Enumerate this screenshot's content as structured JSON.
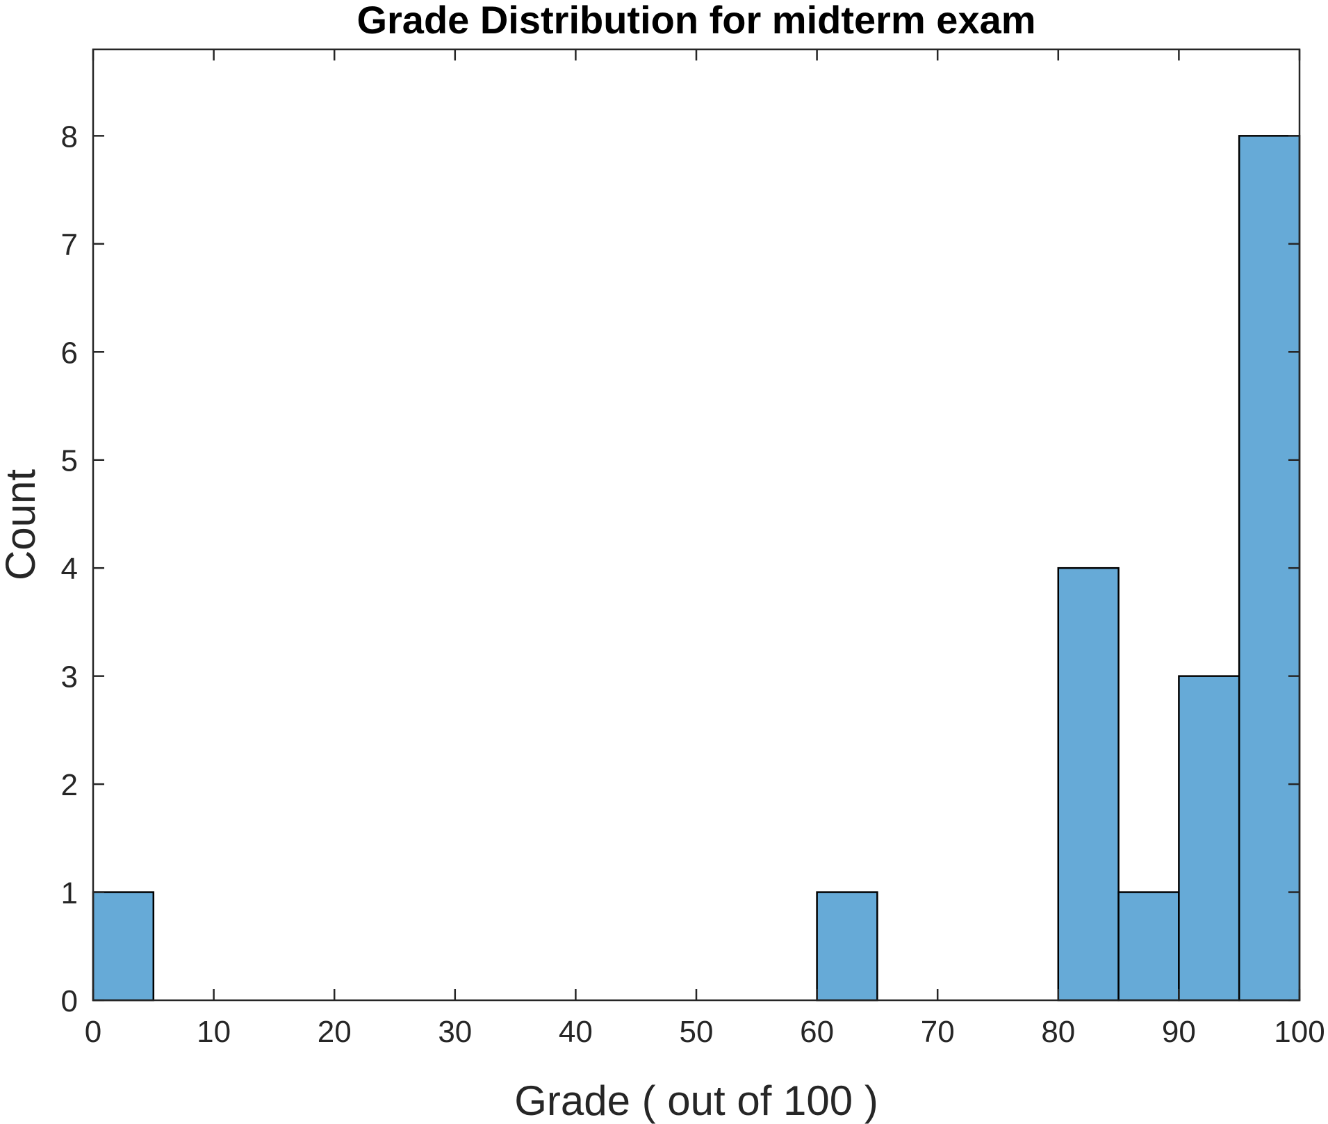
{
  "chart_data": {
    "type": "bar",
    "title": "Grade Distribution for midterm exam",
    "xlabel": "Grade ( out of 100 )",
    "ylabel": "Count",
    "xlim": [
      0,
      100
    ],
    "ylim": [
      0,
      8.8
    ],
    "bin_width": 5,
    "bins": [
      {
        "start": 0,
        "end": 5,
        "count": 1
      },
      {
        "start": 5,
        "end": 10,
        "count": 0
      },
      {
        "start": 10,
        "end": 15,
        "count": 0
      },
      {
        "start": 15,
        "end": 20,
        "count": 0
      },
      {
        "start": 20,
        "end": 25,
        "count": 0
      },
      {
        "start": 25,
        "end": 30,
        "count": 0
      },
      {
        "start": 30,
        "end": 35,
        "count": 0
      },
      {
        "start": 35,
        "end": 40,
        "count": 0
      },
      {
        "start": 40,
        "end": 45,
        "count": 0
      },
      {
        "start": 45,
        "end": 50,
        "count": 0
      },
      {
        "start": 50,
        "end": 55,
        "count": 0
      },
      {
        "start": 55,
        "end": 60,
        "count": 0
      },
      {
        "start": 60,
        "end": 65,
        "count": 1
      },
      {
        "start": 65,
        "end": 70,
        "count": 0
      },
      {
        "start": 70,
        "end": 75,
        "count": 0
      },
      {
        "start": 75,
        "end": 80,
        "count": 0
      },
      {
        "start": 80,
        "end": 85,
        "count": 4
      },
      {
        "start": 85,
        "end": 90,
        "count": 1
      },
      {
        "start": 90,
        "end": 95,
        "count": 3
      },
      {
        "start": 95,
        "end": 100,
        "count": 8
      }
    ],
    "xticks": [
      "0",
      "10",
      "20",
      "30",
      "40",
      "50",
      "60",
      "70",
      "80",
      "90",
      "100"
    ],
    "yticks": [
      "0",
      "1",
      "2",
      "3",
      "4",
      "5",
      "6",
      "7",
      "8"
    ],
    "grid": false,
    "legend": "none",
    "colors": {
      "bar_fill": "#66aad7",
      "bar_edge": "#000000",
      "axis": "#262626",
      "background": "#ffffff"
    }
  }
}
